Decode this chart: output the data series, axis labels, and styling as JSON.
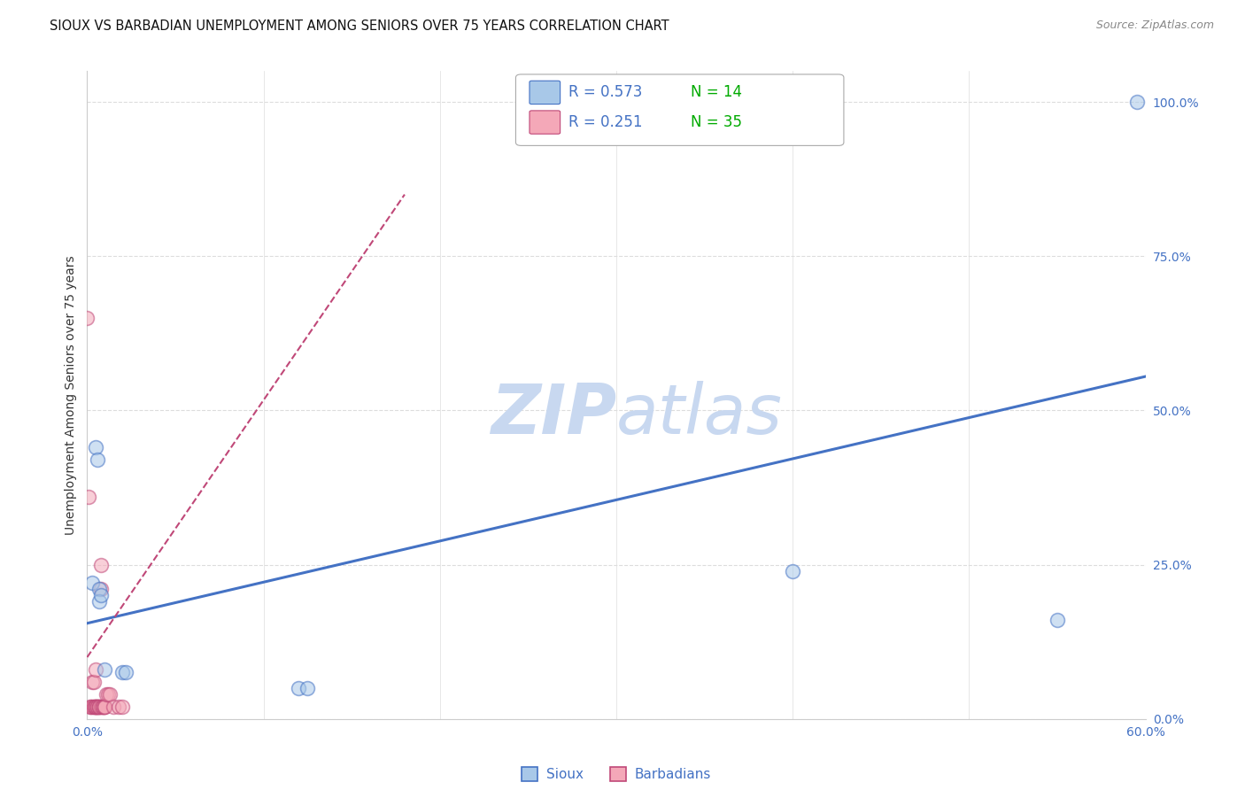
{
  "title": "SIOUX VS BARBADIAN UNEMPLOYMENT AMONG SENIORS OVER 75 YEARS CORRELATION CHART",
  "source": "Source: ZipAtlas.com",
  "tick_color": "#4472c4",
  "ylabel": "Unemployment Among Seniors over 75 years",
  "xlim": [
    0.0,
    0.6
  ],
  "ylim": [
    0.0,
    1.05
  ],
  "x_ticks": [
    0.0,
    0.1,
    0.2,
    0.3,
    0.4,
    0.5,
    0.6
  ],
  "x_tick_labels": [
    "0.0%",
    "",
    "",
    "",
    "",
    "",
    "60.0%"
  ],
  "y_ticks": [
    0.0,
    0.25,
    0.5,
    0.75,
    1.0
  ],
  "y_tick_labels": [
    "0.0%",
    "25.0%",
    "50.0%",
    "75.0%",
    "100.0%"
  ],
  "sioux_color": "#A8C8E8",
  "barbadian_color": "#F4A8B8",
  "sioux_line_color": "#4472C4",
  "barbadian_line_color": "#C04878",
  "sioux_R": 0.573,
  "sioux_N": 14,
  "barbadian_R": 0.251,
  "barbadian_N": 35,
  "legend_color": "#4472C4",
  "legend_green": "#00AA00",
  "sioux_points": [
    [
      0.003,
      0.22
    ],
    [
      0.005,
      0.44
    ],
    [
      0.006,
      0.42
    ],
    [
      0.007,
      0.21
    ],
    [
      0.007,
      0.19
    ],
    [
      0.008,
      0.2
    ],
    [
      0.01,
      0.08
    ],
    [
      0.02,
      0.075
    ],
    [
      0.022,
      0.075
    ],
    [
      0.12,
      0.05
    ],
    [
      0.125,
      0.05
    ],
    [
      0.4,
      0.24
    ],
    [
      0.55,
      0.16
    ],
    [
      0.595,
      1.0
    ]
  ],
  "barbadian_points": [
    [
      0.0,
      0.65
    ],
    [
      0.001,
      0.36
    ],
    [
      0.002,
      0.02
    ],
    [
      0.002,
      0.02
    ],
    [
      0.003,
      0.02
    ],
    [
      0.003,
      0.06
    ],
    [
      0.004,
      0.02
    ],
    [
      0.004,
      0.02
    ],
    [
      0.004,
      0.06
    ],
    [
      0.005,
      0.02
    ],
    [
      0.005,
      0.02
    ],
    [
      0.005,
      0.08
    ],
    [
      0.005,
      0.02
    ],
    [
      0.005,
      0.02
    ],
    [
      0.006,
      0.02
    ],
    [
      0.006,
      0.02
    ],
    [
      0.006,
      0.02
    ],
    [
      0.007,
      0.02
    ],
    [
      0.007,
      0.02
    ],
    [
      0.007,
      0.02
    ],
    [
      0.008,
      0.25
    ],
    [
      0.008,
      0.21
    ],
    [
      0.008,
      0.02
    ],
    [
      0.009,
      0.02
    ],
    [
      0.009,
      0.02
    ],
    [
      0.009,
      0.02
    ],
    [
      0.01,
      0.02
    ],
    [
      0.01,
      0.02
    ],
    [
      0.01,
      0.02
    ],
    [
      0.011,
      0.04
    ],
    [
      0.012,
      0.04
    ],
    [
      0.013,
      0.04
    ],
    [
      0.015,
      0.02
    ],
    [
      0.018,
      0.02
    ],
    [
      0.02,
      0.02
    ]
  ],
  "sioux_trend": [
    0.0,
    0.6,
    0.155,
    0.555
  ],
  "barbadian_trend": [
    0.0,
    0.18,
    0.1,
    0.85
  ],
  "background_color": "#FFFFFF",
  "grid_color": "#DDDDDD",
  "watermark_zip": "ZIP",
  "watermark_atlas": "atlas",
  "watermark_color": "#C8D8F0",
  "marker_size": 130,
  "marker_alpha": 0.55,
  "marker_edge_width": 1.2
}
